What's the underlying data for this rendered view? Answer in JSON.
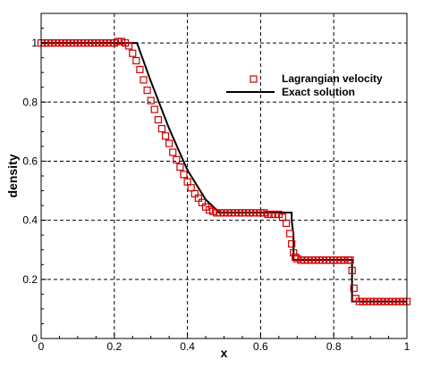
{
  "chart_data": {
    "type": "scatter",
    "title": "",
    "xlabel": "x",
    "ylabel": "density",
    "xlim": [
      0,
      1
    ],
    "ylim": [
      0,
      1.1
    ],
    "x_ticks": [
      0,
      0.2,
      0.4,
      0.6,
      0.8,
      1
    ],
    "x_tick_labels": [
      "0",
      "0.2",
      "0.4",
      "0.6",
      "0.8",
      "1"
    ],
    "y_ticks": [
      0,
      0.2,
      0.4,
      0.6,
      0.8,
      1
    ],
    "y_tick_labels": [
      "0",
      "0.2",
      "0.4",
      "0.6",
      "0.8",
      "1"
    ],
    "grid": true,
    "legend_position": "top-right",
    "series": [
      {
        "name": "Lagrangian velocity",
        "style": "square-markers",
        "color": "#cc0000",
        "x": [
          0.0,
          0.01,
          0.02,
          0.03,
          0.04,
          0.05,
          0.06,
          0.07,
          0.08,
          0.09,
          0.1,
          0.11,
          0.12,
          0.13,
          0.14,
          0.15,
          0.16,
          0.17,
          0.18,
          0.19,
          0.2,
          0.21,
          0.22,
          0.23,
          0.24,
          0.25,
          0.26,
          0.27,
          0.28,
          0.29,
          0.3,
          0.31,
          0.32,
          0.33,
          0.34,
          0.35,
          0.36,
          0.37,
          0.38,
          0.39,
          0.4,
          0.41,
          0.42,
          0.43,
          0.44,
          0.45,
          0.46,
          0.47,
          0.48,
          0.49,
          0.5,
          0.51,
          0.52,
          0.53,
          0.54,
          0.55,
          0.56,
          0.57,
          0.58,
          0.59,
          0.6,
          0.61,
          0.62,
          0.63,
          0.64,
          0.65,
          0.66,
          0.67,
          0.68,
          0.685,
          0.69,
          0.695,
          0.7,
          0.71,
          0.72,
          0.73,
          0.74,
          0.75,
          0.76,
          0.77,
          0.78,
          0.79,
          0.8,
          0.81,
          0.82,
          0.83,
          0.84,
          0.845,
          0.85,
          0.855,
          0.86,
          0.87,
          0.88,
          0.89,
          0.9,
          0.91,
          0.92,
          0.93,
          0.94,
          0.95,
          0.96,
          0.97,
          0.98,
          0.99,
          1.0
        ],
        "y": [
          1.0,
          1.0,
          1.0,
          1.0,
          1.0,
          1.0,
          1.0,
          1.0,
          1.0,
          1.0,
          1.0,
          1.0,
          1.0,
          1.0,
          1.0,
          1.0,
          1.0,
          1.0,
          1.0,
          1.0,
          1.0,
          1.005,
          1.005,
          1.0,
          0.99,
          0.965,
          0.94,
          0.91,
          0.875,
          0.84,
          0.805,
          0.775,
          0.74,
          0.71,
          0.685,
          0.66,
          0.63,
          0.605,
          0.58,
          0.555,
          0.53,
          0.51,
          0.49,
          0.475,
          0.46,
          0.445,
          0.435,
          0.43,
          0.425,
          0.425,
          0.425,
          0.425,
          0.425,
          0.425,
          0.425,
          0.425,
          0.425,
          0.425,
          0.425,
          0.425,
          0.425,
          0.425,
          0.42,
          0.42,
          0.42,
          0.42,
          0.41,
          0.39,
          0.355,
          0.32,
          0.29,
          0.275,
          0.27,
          0.265,
          0.265,
          0.265,
          0.265,
          0.265,
          0.265,
          0.265,
          0.265,
          0.265,
          0.265,
          0.265,
          0.265,
          0.265,
          0.265,
          0.265,
          0.23,
          0.17,
          0.135,
          0.125,
          0.125,
          0.125,
          0.125,
          0.125,
          0.125,
          0.125,
          0.125,
          0.125,
          0.125,
          0.125,
          0.125,
          0.125,
          0.125
        ]
      },
      {
        "name": "Exact solution",
        "style": "line",
        "color": "#000000",
        "x": [
          0.0,
          0.262,
          0.3,
          0.35,
          0.4,
          0.45,
          0.487,
          0.6,
          0.685,
          0.685,
          0.69,
          0.69,
          0.85,
          0.85,
          1.0
        ],
        "y": [
          1.0,
          1.0,
          0.87,
          0.71,
          0.57,
          0.47,
          0.426,
          0.426,
          0.426,
          0.4,
          0.35,
          0.266,
          0.266,
          0.125,
          0.125
        ]
      }
    ]
  }
}
